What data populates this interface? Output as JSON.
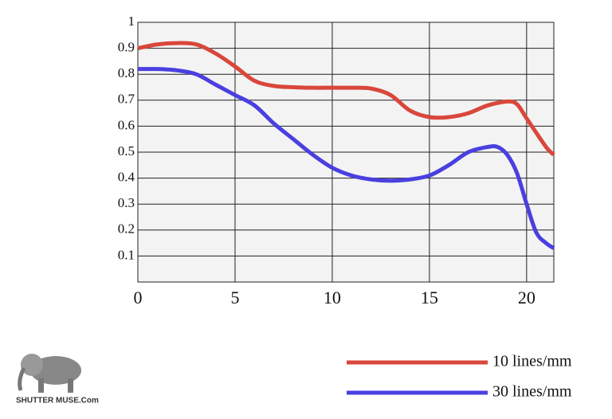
{
  "chart_data": {
    "type": "line",
    "xlim": [
      0,
      21.4
    ],
    "ylim": [
      0,
      1
    ],
    "xticks": [
      0,
      5,
      10,
      15,
      20
    ],
    "yticks": [
      0.1,
      0.2,
      0.3,
      0.4,
      0.5,
      0.6,
      0.7,
      0.8,
      0.9,
      1
    ],
    "grid": true,
    "series": [
      {
        "name": "10 lines/mm",
        "color": "#d9473b",
        "x": [
          0,
          1,
          2,
          3,
          4,
          5,
          6,
          7,
          8,
          9,
          10,
          11,
          12,
          13,
          14,
          15,
          16,
          17,
          18,
          19,
          19.5,
          20,
          21,
          21.4
        ],
        "values": [
          0.9,
          0.915,
          0.92,
          0.915,
          0.88,
          0.83,
          0.775,
          0.755,
          0.75,
          0.748,
          0.748,
          0.748,
          0.745,
          0.72,
          0.66,
          0.635,
          0.635,
          0.65,
          0.68,
          0.695,
          0.685,
          0.63,
          0.52,
          0.49
        ]
      },
      {
        "name": "30 lines/mm",
        "color": "#4a3fe0",
        "x": [
          0,
          1,
          2,
          3,
          4,
          5,
          6,
          7,
          8,
          9,
          10,
          11,
          12,
          13,
          14,
          15,
          16,
          17,
          18,
          18.5,
          19,
          19.5,
          20,
          20.5,
          21,
          21.4
        ],
        "values": [
          0.82,
          0.82,
          0.815,
          0.8,
          0.76,
          0.72,
          0.68,
          0.61,
          0.55,
          0.49,
          0.44,
          0.41,
          0.395,
          0.39,
          0.395,
          0.41,
          0.45,
          0.5,
          0.52,
          0.52,
          0.49,
          0.42,
          0.3,
          0.19,
          0.15,
          0.13
        ]
      }
    ],
    "watermark": "SHUTTER MUSE.Com"
  }
}
